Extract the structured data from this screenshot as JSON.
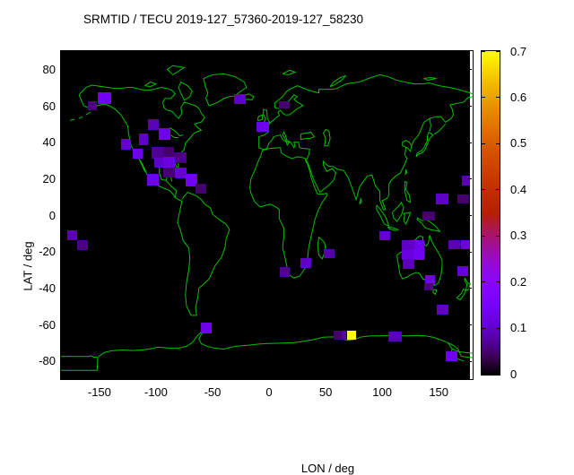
{
  "title": "SRMTID / TECU 2019-127_57360-2019-127_58230",
  "axes": {
    "x": {
      "label": "LON / deg",
      "ticks": [
        -150,
        -100,
        -50,
        0,
        50,
        100,
        150
      ]
    },
    "y": {
      "label": "LAT / deg",
      "ticks": [
        80,
        60,
        40,
        20,
        0,
        -20,
        -40,
        -60,
        -80
      ]
    }
  },
  "colorbar": {
    "min": 0,
    "max": 0.7,
    "tick_labels": [
      "0",
      "0.1",
      "0.2",
      "0.3",
      "0.4",
      "0.5",
      "0.6",
      "0.7"
    ],
    "palette_name": "gnuplot black-purple-red-yellow (rgbformulae 7,5,15)"
  },
  "map": {
    "background_color": "#000000",
    "coastline_color": "#00c000",
    "max_cell_color": "#ffff00"
  },
  "chart_data": {
    "type": "heatmap",
    "title": "SRMTID / TECU 2019-127_57360-2019-127_58230",
    "xlabel": "LON / deg",
    "ylabel": "LAT / deg",
    "xlim": [
      -184,
      180
    ],
    "ylim": [
      -90,
      90
    ],
    "xticks": [
      -150,
      -100,
      -50,
      0,
      50,
      100,
      150
    ],
    "yticks": [
      80,
      60,
      40,
      20,
      0,
      -20,
      -40,
      -60,
      -80
    ],
    "value_range": [
      0,
      0.7
    ],
    "units": "TECU",
    "grid": false,
    "legend_position": "right-colorbar",
    "cells": [
      {
        "lon": -160.0,
        "lat": 57.4,
        "w": 8.0,
        "h": 5.2,
        "v": 0.06
      },
      {
        "lon": -151.6,
        "lat": 61.0,
        "w": 11.9,
        "h": 6.4,
        "v": 0.14
      },
      {
        "lon": -131.0,
        "lat": 36.1,
        "w": 9.3,
        "h": 5.7,
        "v": 0.11
      },
      {
        "lon": -120.4,
        "lat": 31.1,
        "w": 8.5,
        "h": 5.3,
        "v": 0.13
      },
      {
        "lon": -115.0,
        "lat": 38.5,
        "w": 8.0,
        "h": 6.1,
        "v": 0.1
      },
      {
        "lon": -107.1,
        "lat": 46.7,
        "w": 9.2,
        "h": 6.1,
        "v": 0.09
      },
      {
        "lon": -97.9,
        "lat": 41.3,
        "w": 10.6,
        "h": 6.2,
        "v": 0.13
      },
      {
        "lon": -103.7,
        "lat": 31.1,
        "w": 9.8,
        "h": 6.1,
        "v": 0.07
      },
      {
        "lon": -93.9,
        "lat": 31.1,
        "w": 10.1,
        "h": 6.1,
        "v": 0.05
      },
      {
        "lon": -83.8,
        "lat": 28.7,
        "w": 10.5,
        "h": 5.7,
        "v": 0.06
      },
      {
        "lon": -101.8,
        "lat": 25.9,
        "w": 9.2,
        "h": 5.6,
        "v": 0.1
      },
      {
        "lon": -93.4,
        "lat": 26.2,
        "w": 10.1,
        "h": 5.8,
        "v": 0.12
      },
      {
        "lon": -93.4,
        "lat": 20.5,
        "w": 10.1,
        "h": 5.7,
        "v": 0.05
      },
      {
        "lon": -83.3,
        "lat": 20.2,
        "w": 10.0,
        "h": 6.0,
        "v": 0.11
      },
      {
        "lon": -107.7,
        "lat": 16.4,
        "w": 9.8,
        "h": 6.1,
        "v": 0.13
      },
      {
        "lon": -74.1,
        "lat": 15.9,
        "w": 10.6,
        "h": 6.6,
        "v": 0.14
      },
      {
        "lon": -64.8,
        "lat": 11.9,
        "w": 9.2,
        "h": 5.3,
        "v": 0.05
      },
      {
        "lon": -31.0,
        "lat": 61.0,
        "w": 10.4,
        "h": 5.4,
        "v": 0.1
      },
      {
        "lon": -11.1,
        "lat": 45.6,
        "w": 11.1,
        "h": 5.5,
        "v": 0.13
      },
      {
        "lon": 8.7,
        "lat": 58.5,
        "w": 9.6,
        "h": 4.1,
        "v": 0.05
      },
      {
        "lon": -178.8,
        "lat": -13.9,
        "w": 9.2,
        "h": 5.4,
        "v": 0.09
      },
      {
        "lon": -169.6,
        "lat": -19.2,
        "w": 9.3,
        "h": 5.6,
        "v": 0.06
      },
      {
        "lon": -60.3,
        "lat": -64.8,
        "w": 9.7,
        "h": 5.8,
        "v": 0.13
      },
      {
        "lon": 9.3,
        "lat": -34.1,
        "w": 9.2,
        "h": 5.4,
        "v": 0.07
      },
      {
        "lon": 27.8,
        "lat": -29.2,
        "w": 9.8,
        "h": 5.4,
        "v": 0.1
      },
      {
        "lon": 48.4,
        "lat": -23.8,
        "w": 9.8,
        "h": 5.0,
        "v": 0.08
      },
      {
        "lon": 97.4,
        "lat": -13.9,
        "w": 9.7,
        "h": 5.2,
        "v": 0.11
      },
      {
        "lon": 117.7,
        "lat": -19.3,
        "w": 10.6,
        "h": 5.4,
        "v": 0.1
      },
      {
        "lon": 128.3,
        "lat": -19.3,
        "w": 9.3,
        "h": 5.4,
        "v": 0.13
      },
      {
        "lon": 117.7,
        "lat": -24.6,
        "w": 10.6,
        "h": 5.3,
        "v": 0.12
      },
      {
        "lon": 128.3,
        "lat": -24.6,
        "w": 9.3,
        "h": 5.3,
        "v": 0.14
      },
      {
        "lon": 118.5,
        "lat": -29.5,
        "w": 9.8,
        "h": 5.2,
        "v": 0.09
      },
      {
        "lon": 137.6,
        "lat": -38.5,
        "w": 9.2,
        "h": 5.7,
        "v": 0.13
      },
      {
        "lon": 137.1,
        "lat": -41.3,
        "w": 7.9,
        "h": 3.9,
        "v": 0.06
      },
      {
        "lon": 135.7,
        "lat": -3.0,
        "w": 11.1,
        "h": 5.0,
        "v": 0.05
      },
      {
        "lon": 147.5,
        "lat": 5.8,
        "w": 11.0,
        "h": 5.8,
        "v": 0.1
      },
      {
        "lon": 166.7,
        "lat": 6.5,
        "w": 10.0,
        "h": 5.0,
        "v": 0.05
      },
      {
        "lon": 170.6,
        "lat": 16.4,
        "w": 7.0,
        "h": 5.4,
        "v": 0.09
      },
      {
        "lon": 158.7,
        "lat": -18.9,
        "w": 10.6,
        "h": 5.3,
        "v": 0.09
      },
      {
        "lon": 169.3,
        "lat": -18.9,
        "w": 8.3,
        "h": 5.3,
        "v": 0.12
      },
      {
        "lon": 166.1,
        "lat": -33.6,
        "w": 9.8,
        "h": 5.7,
        "v": 0.11
      },
      {
        "lon": 148.2,
        "lat": -54.6,
        "w": 10.5,
        "h": 5.4,
        "v": 0.1
      },
      {
        "lon": 56.9,
        "lat": -68.5,
        "w": 7.1,
        "h": 5.1,
        "v": 0.05
      },
      {
        "lon": 64.0,
        "lat": -68.5,
        "w": 4.3,
        "h": 5.1,
        "v": 0.08
      },
      {
        "lon": 69.0,
        "lat": -68.5,
        "w": 8.0,
        "h": 5.1,
        "v": 0.7
      },
      {
        "lon": 105.3,
        "lat": -69.4,
        "w": 12.4,
        "h": 5.5,
        "v": 0.09
      },
      {
        "lon": 156.1,
        "lat": -80.3,
        "w": 10.6,
        "h": 5.7,
        "v": 0.13
      }
    ]
  }
}
